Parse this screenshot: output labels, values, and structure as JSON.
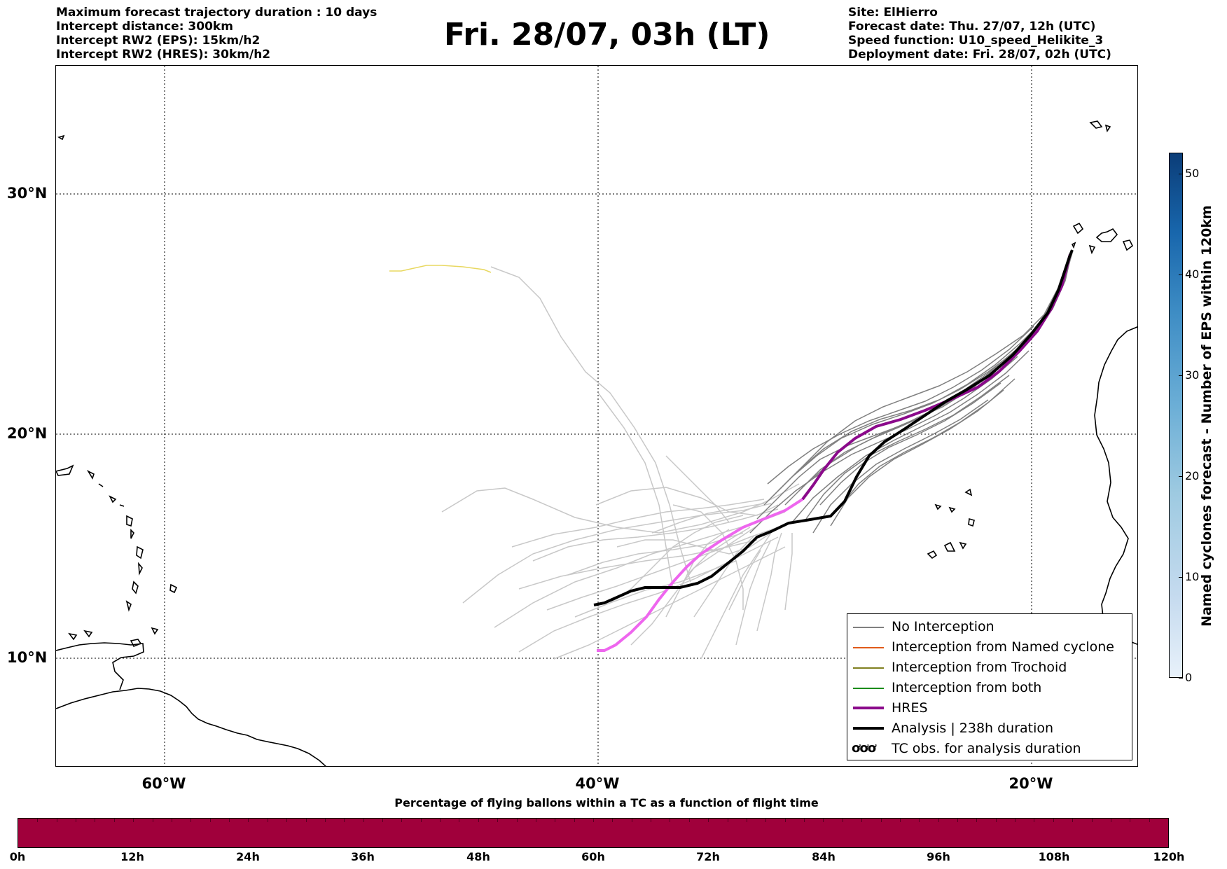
{
  "header_left": {
    "line1": "Maximum forecast trajectory duration : 10 days",
    "line2": "Intercept distance: 300km",
    "line3": "Intercept RW2 (EPS):  15km/h2",
    "line4": "Intercept RW2 (HRES): 30km/h2"
  },
  "title": "Fri. 28/07, 03h (LT)",
  "header_right": {
    "line1": "Site: ElHierro",
    "line2": "Forecast date: Thu. 27/07, 12h (UTC)",
    "line3": "Speed function: U10_speed_Helikite_3",
    "line4": "Deployment date: Fri. 28/07, 02h (UTC)"
  },
  "map": {
    "lat_labels": [
      "30°N",
      "20°N",
      "10°N"
    ],
    "lon_labels": [
      "60°W",
      "40°W",
      "20°W"
    ],
    "colors": {
      "no_interception": "#808080",
      "ensemble_faint": "#c8c8c8",
      "named_cyclone": "#e05a1a",
      "trochoid": "#808020",
      "both": "#1a8c1a",
      "hres": "#8b0a8b",
      "hres_light": "#ee66ee",
      "analysis": "#000000",
      "outlier": "#e8d860"
    }
  },
  "legend": {
    "items": [
      {
        "label": "No Interception",
        "color": "#808080",
        "width": 1.5
      },
      {
        "label": "Interception from Named cyclone",
        "color": "#e05a1a",
        "width": 1.5
      },
      {
        "label": "Interception from Trochoid",
        "color": "#808020",
        "width": 1.5
      },
      {
        "label": "Interception from both",
        "color": "#1a8c1a",
        "width": 1.5
      },
      {
        "label": "HRES",
        "color": "#8b0a8b",
        "width": 4
      },
      {
        "label": "Analysis | 238h duration",
        "color": "#000000",
        "width": 4
      }
    ],
    "tc_symbol": "ơơơ",
    "tc_label": "TC obs. for analysis duration"
  },
  "colorbar_right": {
    "label": "Named cyclones forecast - Number of EPS within 120km",
    "ticks": [
      "0",
      "10",
      "20",
      "30",
      "40",
      "50"
    ]
  },
  "colorbar_bottom": {
    "title": "Percentage of flying ballons within a TC as a function of flight time",
    "ticks": [
      "0h",
      "12h",
      "24h",
      "36h",
      "48h",
      "60h",
      "72h",
      "84h",
      "96h",
      "108h",
      "120h"
    ],
    "fill_color": "#a0003b"
  }
}
